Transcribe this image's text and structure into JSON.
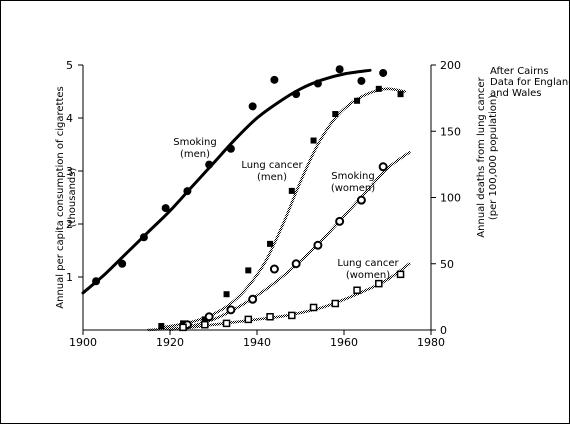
{
  "chart_data": {
    "type": "scatter",
    "title": "",
    "note_lines": [
      "After Cairns",
      "Data for England",
      "and Wales"
    ],
    "xlim": [
      1900,
      1980
    ],
    "x_ticks": [
      1900,
      1920,
      1940,
      1960,
      1980
    ],
    "y_left": {
      "label_lines": [
        "Annual per capita consumption of cigarettes",
        "(thousands)"
      ],
      "lim": [
        0,
        5
      ],
      "ticks": [
        1,
        2,
        3,
        4,
        5
      ]
    },
    "y_right": {
      "label_lines": [
        "Annual deaths from lung cancer",
        "(per 100,000 population)"
      ],
      "lim": [
        0,
        200
      ],
      "ticks": [
        0,
        50,
        100,
        150,
        200
      ]
    },
    "series": [
      {
        "key": "smoking-men",
        "label_lines": [
          "Smoking",
          "(men)"
        ],
        "axis": "left",
        "marker": "filled-circle",
        "line_style": "thick",
        "points": [
          [
            1903,
            0.92
          ],
          [
            1909,
            1.25
          ],
          [
            1914,
            1.75
          ],
          [
            1919,
            2.3
          ],
          [
            1924,
            2.62
          ],
          [
            1929,
            3.12
          ],
          [
            1934,
            3.42
          ],
          [
            1939,
            4.22
          ],
          [
            1944,
            4.72
          ],
          [
            1949,
            4.45
          ],
          [
            1954,
            4.65
          ],
          [
            1959,
            4.92
          ],
          [
            1964,
            4.7
          ],
          [
            1969,
            4.85
          ]
        ],
        "fit": [
          [
            1900,
            0.7
          ],
          [
            1905,
            1.05
          ],
          [
            1910,
            1.45
          ],
          [
            1915,
            1.85
          ],
          [
            1920,
            2.25
          ],
          [
            1925,
            2.7
          ],
          [
            1930,
            3.15
          ],
          [
            1935,
            3.6
          ],
          [
            1940,
            4.0
          ],
          [
            1945,
            4.3
          ],
          [
            1950,
            4.55
          ],
          [
            1955,
            4.72
          ],
          [
            1960,
            4.83
          ],
          [
            1966,
            4.9
          ]
        ]
      },
      {
        "key": "lung-cancer-men",
        "label_lines": [
          "Lung cancer",
          "(men)"
        ],
        "axis": "right",
        "marker": "filled-square",
        "line_style": "stipple",
        "points": [
          [
            1918,
            3
          ],
          [
            1923,
            5
          ],
          [
            1928,
            8
          ],
          [
            1933,
            27
          ],
          [
            1938,
            45
          ],
          [
            1943,
            65
          ],
          [
            1948,
            105
          ],
          [
            1953,
            143
          ],
          [
            1958,
            163
          ],
          [
            1963,
            173
          ],
          [
            1968,
            182
          ],
          [
            1973,
            178
          ]
        ],
        "fit": [
          [
            1918,
            2
          ],
          [
            1922,
            4
          ],
          [
            1926,
            7
          ],
          [
            1930,
            12
          ],
          [
            1934,
            20
          ],
          [
            1938,
            33
          ],
          [
            1942,
            52
          ],
          [
            1946,
            80
          ],
          [
            1950,
            112
          ],
          [
            1954,
            140
          ],
          [
            1958,
            160
          ],
          [
            1962,
            172
          ],
          [
            1966,
            179
          ],
          [
            1970,
            182
          ],
          [
            1974,
            180
          ]
        ]
      },
      {
        "key": "smoking-women",
        "label_lines": [
          "Smoking",
          "(women)"
        ],
        "axis": "left",
        "marker": "open-circle",
        "line_style": "stipple",
        "points": [
          [
            1924,
            0.1
          ],
          [
            1929,
            0.25
          ],
          [
            1934,
            0.38
          ],
          [
            1939,
            0.58
          ],
          [
            1944,
            1.15
          ],
          [
            1949,
            1.25
          ],
          [
            1954,
            1.6
          ],
          [
            1959,
            2.05
          ],
          [
            1964,
            2.45
          ],
          [
            1969,
            3.08
          ]
        ],
        "fit": [
          [
            1920,
            0.0
          ],
          [
            1925,
            0.08
          ],
          [
            1930,
            0.2
          ],
          [
            1935,
            0.4
          ],
          [
            1940,
            0.65
          ],
          [
            1945,
            0.95
          ],
          [
            1950,
            1.3
          ],
          [
            1955,
            1.7
          ],
          [
            1960,
            2.15
          ],
          [
            1965,
            2.6
          ],
          [
            1970,
            3.05
          ],
          [
            1975,
            3.35
          ]
        ]
      },
      {
        "key": "lung-cancer-women",
        "label_lines": [
          "Lung cancer",
          "(women)"
        ],
        "axis": "right",
        "marker": "open-square",
        "line_style": "stipple",
        "points": [
          [
            1923,
            2
          ],
          [
            1928,
            4
          ],
          [
            1933,
            5
          ],
          [
            1938,
            8
          ],
          [
            1943,
            10
          ],
          [
            1948,
            11
          ],
          [
            1953,
            17
          ],
          [
            1958,
            20
          ],
          [
            1963,
            30
          ],
          [
            1968,
            35
          ],
          [
            1973,
            42
          ]
        ],
        "fit": [
          [
            1915,
            0
          ],
          [
            1920,
            1
          ],
          [
            1925,
            2
          ],
          [
            1930,
            4
          ],
          [
            1935,
            6
          ],
          [
            1940,
            8
          ],
          [
            1945,
            10
          ],
          [
            1950,
            13
          ],
          [
            1955,
            17
          ],
          [
            1960,
            23
          ],
          [
            1965,
            30
          ],
          [
            1970,
            38
          ],
          [
            1975,
            50
          ]
        ]
      }
    ]
  }
}
